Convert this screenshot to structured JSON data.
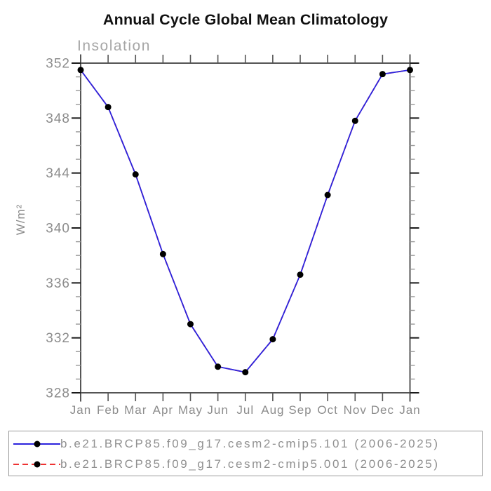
{
  "title": "Annual Cycle Global Mean Climatology",
  "chart_data": {
    "type": "line",
    "title": "Annual Cycle Global Mean Climatology",
    "subtitle": "Insolation",
    "ylabel": "W/m²",
    "xlabel": "",
    "categories": [
      "Jan",
      "Feb",
      "Mar",
      "Apr",
      "May",
      "Jun",
      "Jul",
      "Aug",
      "Sep",
      "Oct",
      "Nov",
      "Dec",
      "Jan"
    ],
    "ylim": [
      328,
      352
    ],
    "ytick_major_interval": 4,
    "ytick_minor_interval": 1,
    "ytick_labels": [
      328,
      332,
      336,
      340,
      344,
      348,
      352
    ],
    "grid": false,
    "legend_position": "bottom",
    "series": [
      {
        "name": "b.e21.BRCP85.f09_g17.cesm2-cmip5.101 (2006-2025)",
        "color": "#2b22dd",
        "line_style": "solid",
        "marker": "circle",
        "marker_color": "#000000",
        "values": [
          351.5,
          348.8,
          343.9,
          338.1,
          333.0,
          329.9,
          329.5,
          331.9,
          336.6,
          342.4,
          347.8,
          351.2,
          351.5
        ]
      },
      {
        "name": "b.e21.BRCP85.f09_g17.cesm2-cmip5.001 (2006-2025)",
        "color": "#ee3333",
        "line_style": "dashed",
        "marker": "circle",
        "marker_color": "#000000",
        "values": [
          351.5,
          348.8,
          343.9,
          338.1,
          333.0,
          329.9,
          329.5,
          331.9,
          336.6,
          342.4,
          347.8,
          351.2,
          351.5
        ]
      }
    ],
    "colors": {
      "axis_line": "#555555",
      "major_tick": "#1a1a1a",
      "minor_tick": "#999999",
      "tick_label": "#8c8c8c",
      "subtitle_text": "#a6a6a6",
      "legend_text": "#909090",
      "title_text": "#111111"
    }
  }
}
